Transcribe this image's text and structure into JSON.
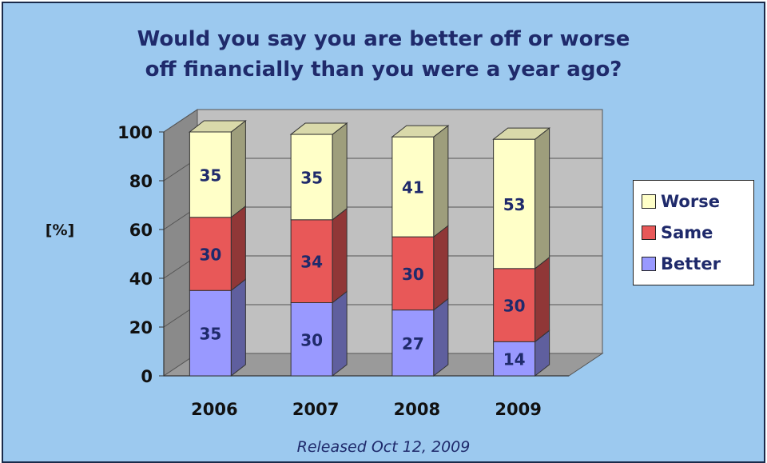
{
  "chart_data": {
    "type": "bar",
    "stacked": true,
    "title": "Would you say you are better off or worse\noff financially than you were a year ago?",
    "ylabel": "[%]",
    "xlabel": "",
    "ylim": [
      0,
      100
    ],
    "yticks": [
      0,
      20,
      40,
      60,
      80,
      100
    ],
    "categories": [
      "2006",
      "2007",
      "2008",
      "2009"
    ],
    "series": [
      {
        "name": "Better",
        "values": [
          35,
          30,
          27,
          14
        ],
        "color": "#9999ff"
      },
      {
        "name": "Same",
        "values": [
          30,
          34,
          30,
          30
        ],
        "color": "#e85858"
      },
      {
        "name": "Worse",
        "values": [
          35,
          35,
          41,
          53
        ],
        "color": "#ffffc8"
      }
    ],
    "legend_order": [
      "Worse",
      "Same",
      "Better"
    ],
    "legend_position": "right",
    "grid": true,
    "caption": "Released Oct 12, 2009"
  },
  "colors": {
    "background": "#9cc9ef",
    "plot_wall": "#c0c0c0",
    "plot_wall_side": "#8a8a8a",
    "floor": "#9a9a9a",
    "text": "#1f2a6b"
  }
}
